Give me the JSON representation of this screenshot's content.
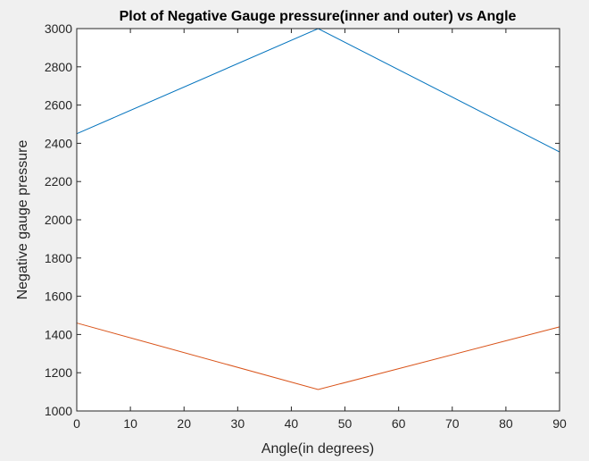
{
  "chart_data": {
    "type": "line",
    "title": "Plot of Negative Gauge pressure(inner and outer) vs Angle",
    "xlabel": "Angle(in degrees)",
    "ylabel": "Negative gauge pressure",
    "xlim": [
      0,
      90
    ],
    "ylim": [
      1000,
      3000
    ],
    "xticks": [
      0,
      10,
      20,
      30,
      40,
      50,
      60,
      70,
      80,
      90
    ],
    "yticks": [
      1000,
      1200,
      1400,
      1600,
      1800,
      2000,
      2200,
      2400,
      2600,
      2800,
      3000
    ],
    "grid": false,
    "series": [
      {
        "x": [
          0,
          45,
          90
        ],
        "values": [
          2450,
          3000,
          2355
        ],
        "color": "#0072BD"
      },
      {
        "x": [
          0,
          45,
          90
        ],
        "values": [
          1460,
          1112,
          1440
        ],
        "color": "#D95319"
      }
    ]
  },
  "colors": {
    "figure_background": "#F0F0F0",
    "axes_background": "#FFFFFF",
    "axis_color": "#262626"
  }
}
